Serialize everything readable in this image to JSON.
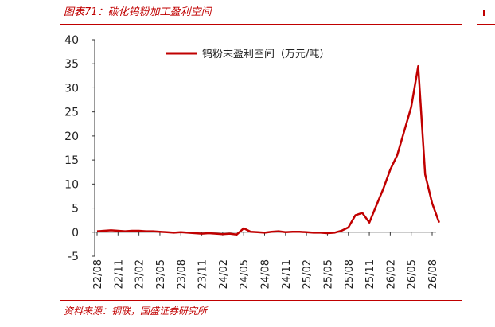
{
  "header": {
    "title": "图表71：碳化钨粉加工盈利空间",
    "source": "资料来源：钢联，国盛证券研究所"
  },
  "colors": {
    "accent": "#c00000",
    "series": "#c00000",
    "axis": "#333333"
  },
  "chart_data": {
    "type": "line",
    "title": "",
    "xlabel": "",
    "ylabel": "",
    "ylim": [
      -5,
      40
    ],
    "y_ticks": [
      -5,
      0,
      5,
      10,
      15,
      20,
      25,
      30,
      35,
      40
    ],
    "x_tick_labels": [
      "22/08",
      "22/11",
      "23/02",
      "23/05",
      "23/08",
      "23/11",
      "24/02",
      "24/05",
      "24/08",
      "24/11",
      "25/02",
      "25/05",
      "25/08",
      "25/11",
      "26/02",
      "26/05",
      "26/08"
    ],
    "grid": false,
    "legend_position": "top",
    "series": [
      {
        "name": "钨粉末盈利空间（万元/吨）",
        "x": [
          "22/08",
          "22/09",
          "22/10",
          "22/11",
          "22/12",
          "23/01",
          "23/02",
          "23/03",
          "23/04",
          "23/05",
          "23/06",
          "23/07",
          "23/08",
          "23/09",
          "23/10",
          "23/11",
          "23/12",
          "24/01",
          "24/02",
          "24/03",
          "24/04",
          "24/05",
          "24/06",
          "24/07",
          "24/08",
          "24/09",
          "24/10",
          "24/11",
          "24/12",
          "25/01",
          "25/02",
          "25/03",
          "25/04",
          "25/05",
          "25/06",
          "25/07",
          "25/08",
          "25/09",
          "25/10",
          "25/11",
          "25/12",
          "26/01",
          "26/02",
          "26/03",
          "26/04",
          "26/05",
          "26/06",
          "26/07",
          "26/08",
          "26/09"
        ],
        "values": [
          0.2,
          0.3,
          0.4,
          0.3,
          0.2,
          0.3,
          0.3,
          0.2,
          0.2,
          0.1,
          0.0,
          -0.1,
          0.0,
          -0.1,
          -0.2,
          -0.3,
          -0.2,
          -0.3,
          -0.4,
          -0.3,
          -0.5,
          0.8,
          0.1,
          0.0,
          -0.1,
          0.1,
          0.2,
          0.0,
          0.1,
          0.1,
          0.0,
          -0.1,
          -0.1,
          -0.2,
          -0.1,
          0.3,
          1.0,
          3.5,
          4.0,
          2.0,
          5.5,
          9.0,
          13.0,
          16.0,
          21.0,
          26.0,
          34.5,
          12.0,
          6.0,
          2.0
        ]
      }
    ]
  }
}
